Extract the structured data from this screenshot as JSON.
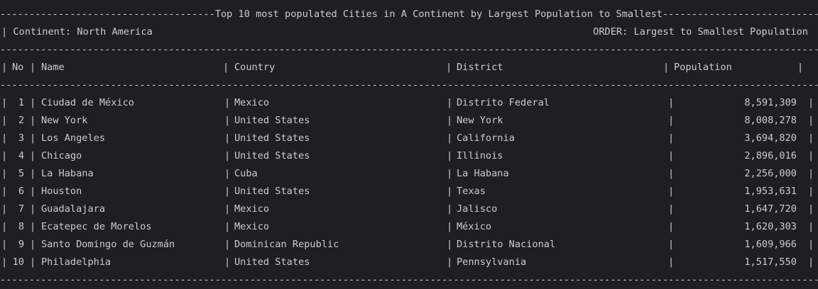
{
  "header": {
    "title_line": "-------------------------------------Top 10 most populated Cities in A Continent by Largest Population to Smallest-------------------------------------",
    "continent_label": "| Continent: North America",
    "order_label": "ORDER: Largest to Smallest Population"
  },
  "separator": "--------------------------------------------------------------------------------------------------------------------------------------------------------",
  "columns": {
    "no": "No",
    "name": "Name",
    "country": "Country",
    "district": "District",
    "population": "Population"
  },
  "rows": [
    {
      "no": "1",
      "name": "Ciudad de México",
      "country": "Mexico",
      "district": "Distrito Federal",
      "population": "8,591,309"
    },
    {
      "no": "2",
      "name": "New York",
      "country": "United States",
      "district": "New York",
      "population": "8,008,278"
    },
    {
      "no": "3",
      "name": "Los Angeles",
      "country": "United States",
      "district": "California",
      "population": "3,694,820"
    },
    {
      "no": "4",
      "name": "Chicago",
      "country": "United States",
      "district": "Illinois",
      "population": "2,896,016"
    },
    {
      "no": "5",
      "name": "La Habana",
      "country": "Cuba",
      "district": "La Habana",
      "population": "2,256,000"
    },
    {
      "no": "6",
      "name": "Houston",
      "country": "United States",
      "district": "Texas",
      "population": "1,953,631"
    },
    {
      "no": "7",
      "name": "Guadalajara",
      "country": "Mexico",
      "district": "Jalisco",
      "population": "1,647,720"
    },
    {
      "no": "8",
      "name": "Ecatepec de Morelos",
      "country": "Mexico",
      "district": "México",
      "population": "1,620,303"
    },
    {
      "no": "9",
      "name": "Santo Domingo de Guzmán",
      "country": "Dominican Republic",
      "district": "Distrito Nacional",
      "population": "1,609,966"
    },
    {
      "no": "10",
      "name": "Philadelphia",
      "country": "United States",
      "district": "Pennsylvania",
      "population": "1,517,550"
    }
  ]
}
